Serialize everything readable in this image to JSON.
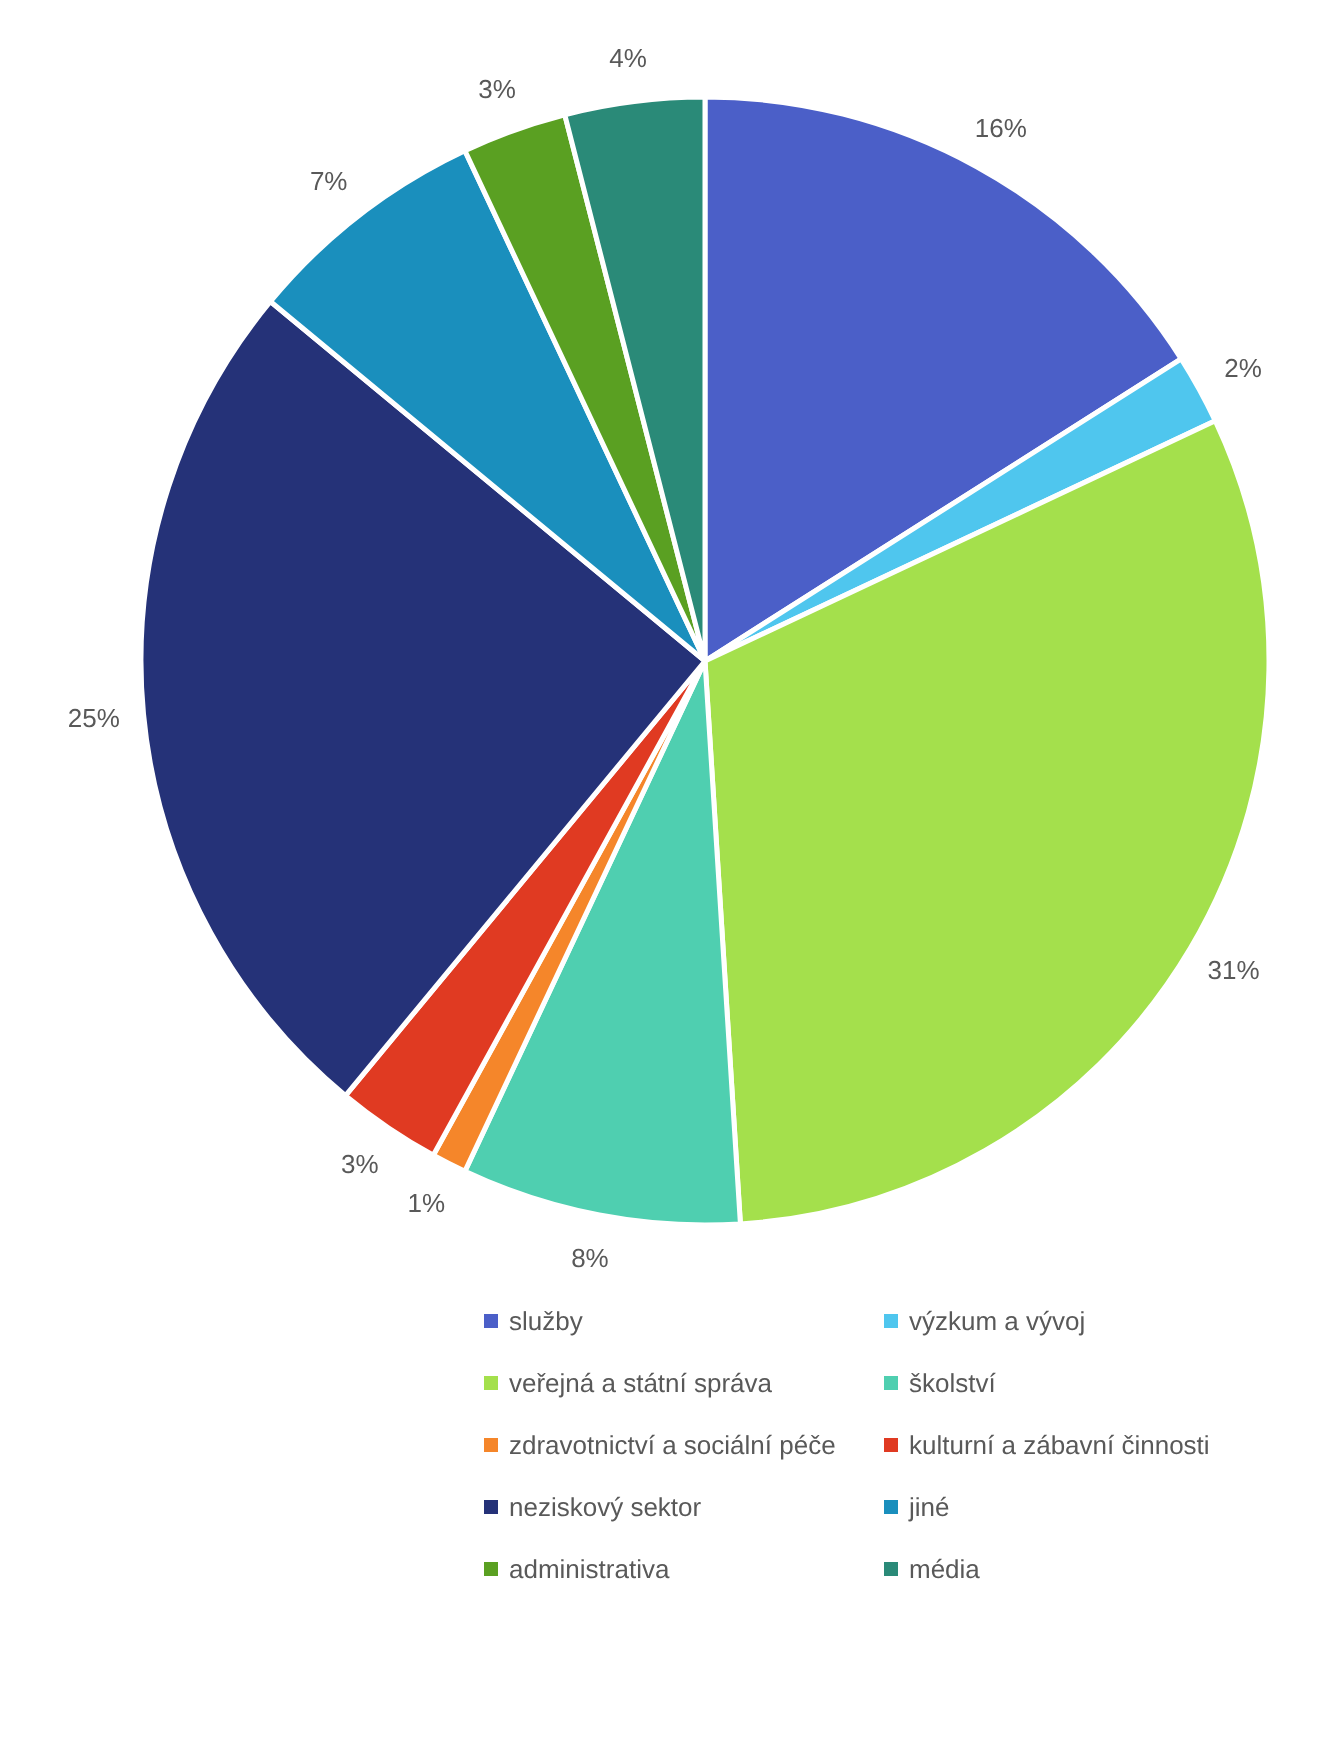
{
  "chart_data": {
    "type": "pie",
    "categories": [
      "služby",
      "výzkum a vývoj",
      "veřejná a státní správa",
      "školství",
      "zdravotnictví a sociální péče",
      "kulturní a zábavní činnosti",
      "neziskový sektor",
      "jiné",
      "administrativa",
      "média"
    ],
    "values": [
      16,
      2,
      31,
      8,
      1,
      3,
      25,
      7,
      3,
      4
    ],
    "value_labels": [
      "16%",
      "2%",
      "31%",
      "8%",
      "1%",
      "3%",
      "25%",
      "7%",
      "3%",
      "4%"
    ],
    "colors": [
      "#4b5fc8",
      "#4fc6ee",
      "#a4e04c",
      "#4fcfb0",
      "#f5862a",
      "#e03a22",
      "#253278",
      "#1a8fbd",
      "#5aa022",
      "#2a8a78"
    ],
    "legend": "bottom"
  }
}
